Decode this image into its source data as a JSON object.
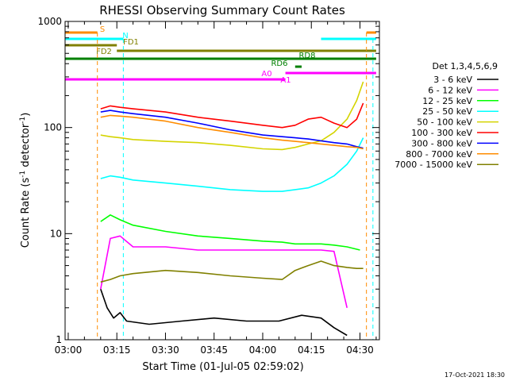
{
  "chart_data": {
    "type": "line",
    "title": "RHESSI Observing Summary Count Rates",
    "xlabel": "Start Time (01-Jul-05 02:59:02)",
    "ylabel": "Count Rate (s⁻¹ detector⁻¹)",
    "ylabel_main": "Count Rate (s",
    "ylabel_sup1": "-1",
    "ylabel_mid": " detector",
    "ylabel_sup2": "-1",
    "ylabel_end": ")",
    "y_scale": "log",
    "ylim": [
      1,
      1000
    ],
    "xlim": [
      "02:59:02",
      "04:36:00"
    ],
    "x_ticks": [
      "03:00",
      "03:15",
      "03:30",
      "03:45",
      "04:00",
      "04:15",
      "04:30"
    ],
    "y_ticks": [
      "1",
      "10",
      "100",
      "1000"
    ],
    "timestamp": "17-Oct-2021 18:30",
    "legend": {
      "title": "Det 1,3,4,5,6,9",
      "placement": "right",
      "entries": [
        {
          "label": "3 - 6 keV",
          "color": "#000000"
        },
        {
          "label": "6 - 12 keV",
          "color": "#ff00ff"
        },
        {
          "label": "12 - 25 keV",
          "color": "#00ff00"
        },
        {
          "label": "25 - 50 keV",
          "color": "#00ffff"
        },
        {
          "label": "50 - 100 keV",
          "color": "#d4d400"
        },
        {
          "label": "100 - 300 keV",
          "color": "#ff0000"
        },
        {
          "label": "300 - 800 keV",
          "color": "#0000ff"
        },
        {
          "label": "800 - 7000 keV",
          "color": "#ff8c00"
        },
        {
          "label": "7000 - 15000 keV",
          "color": "#808000"
        }
      ]
    },
    "flags": [
      {
        "label": "S",
        "color": "#ff8c00",
        "segments": [
          [
            "02:59",
            "03:09"
          ],
          [
            "04:32",
            "04:35"
          ]
        ]
      },
      {
        "label": "N",
        "color": "#00ffff",
        "segments": [
          [
            "02:59",
            "03:17"
          ],
          [
            "04:18",
            "04:35"
          ]
        ]
      },
      {
        "label": "FD1",
        "color": "#808000",
        "segments": [
          [
            "02:59",
            "03:15"
          ]
        ]
      },
      {
        "label": "FD2",
        "color": "#808000",
        "segments": [
          [
            "03:15",
            "04:35"
          ]
        ]
      },
      {
        "label": "RD8",
        "color": "#008000",
        "segments": [
          [
            "02:59",
            "04:35"
          ]
        ]
      },
      {
        "label": "RD6",
        "color": "#008000",
        "segments": [
          [
            "04:10",
            "04:12"
          ]
        ]
      },
      {
        "label": "A0",
        "color": "#ff00ff",
        "segments": [
          [
            "04:07",
            "04:35"
          ]
        ]
      },
      {
        "label": "A1",
        "color": "#ff00ff",
        "segments": [
          [
            "02:59",
            "04:07"
          ]
        ]
      }
    ],
    "night_boundaries": [
      "03:09",
      "04:32"
    ],
    "saa_boundaries": [
      "03:17",
      "04:34"
    ],
    "series": [
      {
        "name": "3 - 6 keV",
        "color": "#000000",
        "x": [
          "03:10",
          "03:12",
          "03:14",
          "03:16",
          "03:18",
          "03:25",
          "03:35",
          "03:45",
          "03:55",
          "04:05",
          "04:12",
          "04:18",
          "04:22",
          "04:26"
        ],
        "values": [
          3.0,
          2.0,
          1.6,
          1.8,
          1.5,
          1.4,
          1.5,
          1.6,
          1.5,
          1.5,
          1.7,
          1.6,
          1.3,
          1.1
        ]
      },
      {
        "name": "6 - 12 keV",
        "color": "#ff00ff",
        "x": [
          "03:10",
          "03:13",
          "03:16",
          "03:20",
          "03:30",
          "03:40",
          "03:50",
          "04:00",
          "04:06",
          "04:10",
          "04:14",
          "04:18",
          "04:22",
          "04:26"
        ],
        "values": [
          3.0,
          9.0,
          9.5,
          7.5,
          7.5,
          7.0,
          7.0,
          7.0,
          7.0,
          7.0,
          7.0,
          7.0,
          6.8,
          2.0
        ]
      },
      {
        "name": "12 - 25 keV",
        "color": "#00ff00",
        "x": [
          "03:10",
          "03:13",
          "03:16",
          "03:20",
          "03:30",
          "03:40",
          "03:50",
          "04:00",
          "04:06",
          "04:10",
          "04:14",
          "04:18",
          "04:22",
          "04:26",
          "04:30"
        ],
        "values": [
          13.0,
          15.0,
          13.5,
          12.0,
          10.5,
          9.5,
          9.0,
          8.5,
          8.3,
          8.0,
          8.0,
          8.0,
          7.8,
          7.5,
          7.0
        ]
      },
      {
        "name": "25 - 50 keV",
        "color": "#00ffff",
        "x": [
          "03:10",
          "03:13",
          "03:16",
          "03:20",
          "03:30",
          "03:40",
          "03:50",
          "04:00",
          "04:06",
          "04:10",
          "04:14",
          "04:18",
          "04:22",
          "04:26",
          "04:29",
          "04:31"
        ],
        "values": [
          33.0,
          35.0,
          34.0,
          32.0,
          30.0,
          28.0,
          26.0,
          25.0,
          25.0,
          26.0,
          27.0,
          30.0,
          35.0,
          45.0,
          60.0,
          80.0
        ]
      },
      {
        "name": "50 - 100 keV",
        "color": "#d4d400",
        "x": [
          "03:10",
          "03:13",
          "03:16",
          "03:20",
          "03:30",
          "03:40",
          "03:50",
          "04:00",
          "04:06",
          "04:10",
          "04:14",
          "04:18",
          "04:22",
          "04:26",
          "04:29",
          "04:31"
        ],
        "values": [
          85.0,
          82.0,
          80.0,
          77.0,
          74.0,
          72.0,
          68.0,
          63.0,
          62.0,
          65.0,
          70.0,
          75.0,
          90.0,
          120.0,
          180.0,
          270.0
        ]
      },
      {
        "name": "100 - 300 keV",
        "color": "#ff0000",
        "x": [
          "03:10",
          "03:13",
          "03:16",
          "03:20",
          "03:30",
          "03:40",
          "03:50",
          "04:00",
          "04:06",
          "04:10",
          "04:14",
          "04:18",
          "04:22",
          "04:26",
          "04:29",
          "04:31"
        ],
        "values": [
          150.0,
          160.0,
          155.0,
          150.0,
          140.0,
          125.0,
          115.0,
          105.0,
          100.0,
          105.0,
          120.0,
          125.0,
          110.0,
          100.0,
          120.0,
          170.0
        ]
      },
      {
        "name": "300 - 800 keV",
        "color": "#0000ff",
        "x": [
          "03:10",
          "03:13",
          "03:16",
          "03:20",
          "03:30",
          "03:40",
          "03:50",
          "04:00",
          "04:06",
          "04:10",
          "04:14",
          "04:18",
          "04:22",
          "04:26",
          "04:29",
          "04:31"
        ],
        "values": [
          140.0,
          145.0,
          140.0,
          135.0,
          125.0,
          110.0,
          95.0,
          85.0,
          82.0,
          80.0,
          78.0,
          75.0,
          72.0,
          70.0,
          66.0,
          64.0
        ]
      },
      {
        "name": "800 - 7000 keV",
        "color": "#ff8c00",
        "x": [
          "03:10",
          "03:13",
          "03:16",
          "03:20",
          "03:30",
          "03:40",
          "03:50",
          "04:00",
          "04:06",
          "04:10",
          "04:14",
          "04:18",
          "04:22",
          "04:26",
          "04:29",
          "04:31"
        ],
        "values": [
          125.0,
          130.0,
          128.0,
          125.0,
          115.0,
          100.0,
          90.0,
          80.0,
          76.0,
          74.0,
          72.0,
          70.0,
          68.0,
          66.0,
          65.0,
          63.0
        ]
      },
      {
        "name": "7000 - 15000 keV",
        "color": "#808000",
        "x": [
          "03:10",
          "03:13",
          "03:16",
          "03:20",
          "03:30",
          "03:40",
          "03:50",
          "04:00",
          "04:06",
          "04:10",
          "04:14",
          "04:18",
          "04:22",
          "04:26",
          "04:29",
          "04:31"
        ],
        "values": [
          3.5,
          3.7,
          4.0,
          4.2,
          4.5,
          4.3,
          4.0,
          3.8,
          3.7,
          4.5,
          5.0,
          5.5,
          5.0,
          4.8,
          4.7,
          4.7
        ]
      }
    ]
  }
}
